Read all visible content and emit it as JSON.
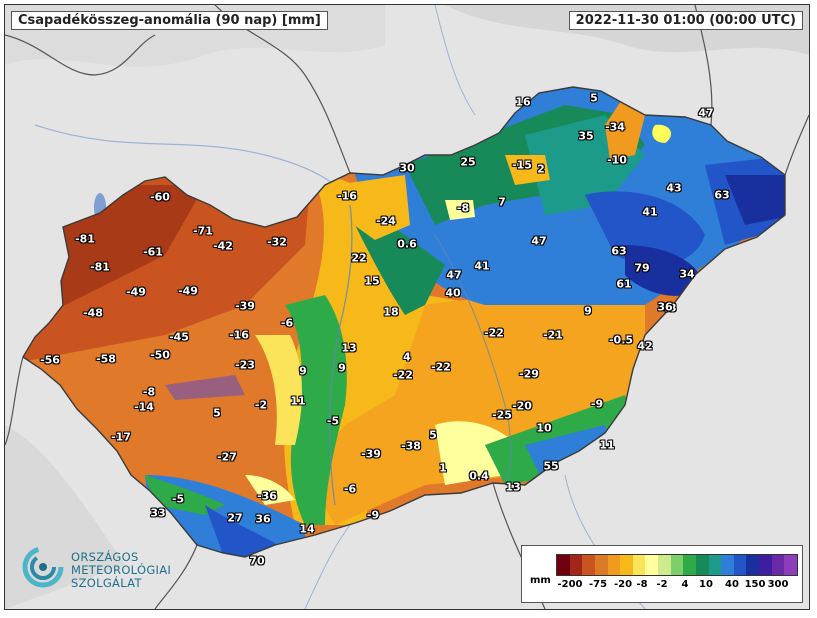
{
  "header": {
    "title": "Csapadékösszeg-anomália (90 nap) [mm]",
    "timestamp": "2022-11-30 01:00 (00:00 UTC)"
  },
  "logo": {
    "lines": [
      "ORSZÁGOS",
      "METEOROLÓGIAI",
      "SZOLGÁLAT"
    ]
  },
  "legend": {
    "unit": "mm",
    "ticks": [
      "-200",
      "-75",
      "-20",
      "-8",
      "-2",
      "4",
      "10",
      "40",
      "150",
      "300"
    ],
    "colors": [
      "#6e0010",
      "#a3261b",
      "#c9541f",
      "#dd7a28",
      "#f09a20",
      "#f7b91a",
      "#fbe35a",
      "#ffff9c",
      "#cdeb8c",
      "#7cd06a",
      "#2eaa48",
      "#188a5a",
      "#1c9a8a",
      "#2f7fd9",
      "#2255c8",
      "#1a2f9e",
      "#3d1ea0",
      "#6a2aa8",
      "#8e3dba"
    ]
  },
  "map_values": [
    {
      "label": "-60"
    },
    {
      "label": "-81"
    },
    {
      "label": "-61"
    },
    {
      "label": "-71"
    },
    {
      "label": "-42"
    },
    {
      "label": "-32"
    },
    {
      "label": "-81"
    },
    {
      "label": "-49"
    },
    {
      "label": "-49"
    },
    {
      "label": "-48"
    },
    {
      "label": "-39"
    },
    {
      "label": "-6"
    },
    {
      "label": "-45"
    },
    {
      "label": "-16"
    },
    {
      "label": "-56"
    },
    {
      "label": "-58"
    },
    {
      "label": "-50"
    },
    {
      "label": "-23"
    },
    {
      "label": "-8"
    },
    {
      "label": "-14"
    },
    {
      "label": "-2"
    },
    {
      "label": "5"
    },
    {
      "label": "-17"
    },
    {
      "label": "-27"
    },
    {
      "label": "-5"
    },
    {
      "label": "-36"
    },
    {
      "label": "33"
    },
    {
      "label": "27"
    },
    {
      "label": "36"
    },
    {
      "label": "14"
    },
    {
      "label": "70"
    },
    {
      "label": "9"
    },
    {
      "label": "9"
    },
    {
      "label": "11"
    },
    {
      "label": "13"
    },
    {
      "label": "-5"
    },
    {
      "label": "4"
    },
    {
      "label": "-22"
    },
    {
      "label": "-22"
    },
    {
      "label": "-39"
    },
    {
      "label": "-38"
    },
    {
      "label": "5"
    },
    {
      "label": "-6"
    },
    {
      "label": "-9"
    },
    {
      "label": "1"
    },
    {
      "label": "0.4"
    },
    {
      "label": "13"
    },
    {
      "label": "55"
    },
    {
      "label": "10"
    },
    {
      "label": "11"
    },
    {
      "label": "-9"
    },
    {
      "label": "-25"
    },
    {
      "label": "-20"
    },
    {
      "label": "-29"
    },
    {
      "label": "-22"
    },
    {
      "label": "-21"
    },
    {
      "label": "-0.5"
    },
    {
      "label": "42"
    },
    {
      "label": "9"
    },
    {
      "label": "43"
    },
    {
      "label": "40"
    },
    {
      "label": "47"
    },
    {
      "label": "41"
    },
    {
      "label": "18"
    },
    {
      "label": "15"
    },
    {
      "label": "22"
    },
    {
      "label": "0.6"
    },
    {
      "label": "-24"
    },
    {
      "label": "-16"
    },
    {
      "label": "30"
    },
    {
      "label": "25"
    },
    {
      "label": "-8"
    },
    {
      "label": "7"
    },
    {
      "label": "-15"
    },
    {
      "label": "2"
    },
    {
      "label": "16"
    },
    {
      "label": "5"
    },
    {
      "label": "35"
    },
    {
      "label": "-34"
    },
    {
      "label": "-10"
    },
    {
      "label": "47"
    },
    {
      "label": "47"
    },
    {
      "label": "43"
    },
    {
      "label": "41"
    },
    {
      "label": "63"
    },
    {
      "label": "63"
    },
    {
      "label": "79"
    },
    {
      "label": "61"
    },
    {
      "label": "34"
    },
    {
      "label": "36"
    },
    {
      "label": "43"
    }
  ]
}
